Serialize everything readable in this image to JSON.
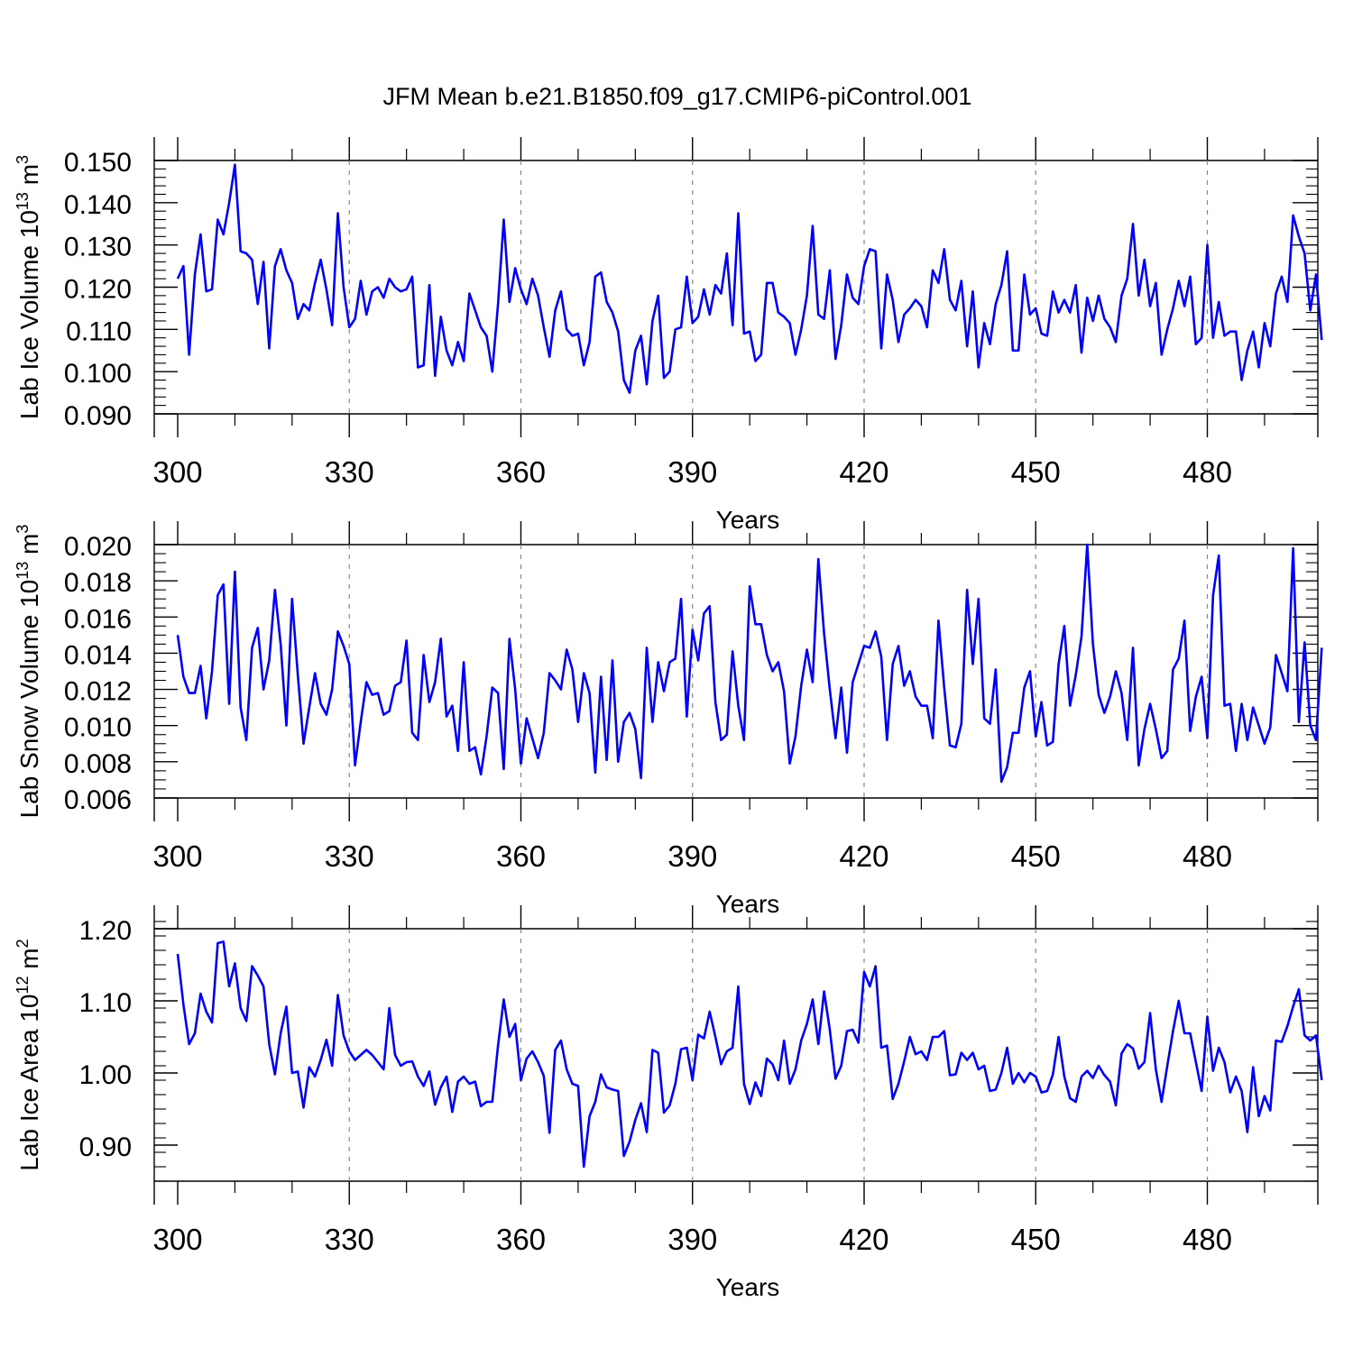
{
  "title": "JFM Mean b.e21.B1850.f09_g17.CMIP6-piControl.001",
  "colors": {
    "series": "#0000ff",
    "axis": "#000000",
    "grid": "#888888"
  },
  "chart_data": [
    {
      "type": "line",
      "name": "lab-ice-volume",
      "title": "",
      "ylabel": {
        "main": "Lab Ice Volume 10",
        "exp": "13",
        "unit": " m",
        "unit_exp": "3"
      },
      "xlabel": "Years",
      "xlim": [
        300,
        499
      ],
      "xticks": [
        300,
        330,
        360,
        390,
        420,
        450,
        480
      ],
      "xtick_labels": [
        "300",
        "330",
        "360",
        "390",
        "420",
        "450",
        "480"
      ],
      "ylim": [
        0.09,
        0.15
      ],
      "yticks": [
        0.09,
        0.1,
        0.11,
        0.12,
        0.13,
        0.14,
        0.15
      ],
      "ytick_labels": [
        "0.090",
        "0.100",
        "0.110",
        "0.120",
        "0.130",
        "0.140",
        "0.150"
      ],
      "y_minor_step": 0.002,
      "x_start": 300,
      "values": [
        0.122,
        0.125,
        0.104,
        0.123,
        0.1325,
        0.119,
        0.1195,
        0.136,
        0.1325,
        0.14,
        0.149,
        0.1285,
        0.128,
        0.1265,
        0.116,
        0.126,
        0.1055,
        0.125,
        0.129,
        0.124,
        0.121,
        0.1125,
        0.116,
        0.1145,
        0.121,
        0.1265,
        0.1195,
        0.111,
        0.1375,
        0.12,
        0.1105,
        0.1125,
        0.1215,
        0.1135,
        0.119,
        0.12,
        0.1175,
        0.122,
        0.12,
        0.119,
        0.1195,
        0.1225,
        0.101,
        0.1015,
        0.1205,
        0.099,
        0.113,
        0.105,
        0.1015,
        0.107,
        0.1025,
        0.1185,
        0.1145,
        0.1105,
        0.1085,
        0.1,
        0.116,
        0.136,
        0.1165,
        0.1245,
        0.1195,
        0.116,
        0.122,
        0.118,
        0.1105,
        0.1035,
        0.1145,
        0.119,
        0.11,
        0.1085,
        0.109,
        0.1015,
        0.107,
        0.1225,
        0.1235,
        0.1165,
        0.114,
        0.1095,
        0.098,
        0.095,
        0.105,
        0.1085,
        0.097,
        0.112,
        0.118,
        0.0985,
        0.1,
        0.11,
        0.1105,
        0.1225,
        0.1115,
        0.113,
        0.1195,
        0.1135,
        0.1205,
        0.1185,
        0.128,
        0.111,
        0.1375,
        0.109,
        0.1095,
        0.1025,
        0.104,
        0.121,
        0.121,
        0.114,
        0.113,
        0.1115,
        0.104,
        0.11,
        0.118,
        0.1345,
        0.1135,
        0.1125,
        0.124,
        0.103,
        0.111,
        0.123,
        0.1175,
        0.116,
        0.125,
        0.129,
        0.1285,
        0.1055,
        0.123,
        0.117,
        0.107,
        0.1135,
        0.115,
        0.117,
        0.1155,
        0.1105,
        0.124,
        0.121,
        0.129,
        0.117,
        0.1145,
        0.1215,
        0.106,
        0.119,
        0.101,
        0.1115,
        0.1065,
        0.116,
        0.1205,
        0.1285,
        0.105,
        0.105,
        0.123,
        0.1135,
        0.115,
        0.109,
        0.1085,
        0.119,
        0.114,
        0.117,
        0.114,
        0.1205,
        0.1045,
        0.1175,
        0.112,
        0.118,
        0.1125,
        0.1105,
        0.107,
        0.118,
        0.122,
        0.135,
        0.118,
        0.1265,
        0.1155,
        0.121,
        0.104,
        0.11,
        0.115,
        0.1215,
        0.1155,
        0.1225,
        0.1065,
        0.108,
        0.13,
        0.108,
        0.1165,
        0.1085,
        0.1095,
        0.1095,
        0.098,
        0.105,
        0.1095,
        0.101,
        0.1115,
        0.106,
        0.1185,
        0.1225,
        0.1165,
        0.137,
        0.132,
        0.128,
        0.1145,
        0.123,
        0.1075
      ]
    },
    {
      "type": "line",
      "name": "lab-snow-volume",
      "title": "",
      "ylabel": {
        "main": "Lab Snow Volume 10",
        "exp": "13",
        "unit": " m",
        "unit_exp": "3"
      },
      "xlabel": "Years",
      "xlim": [
        300,
        499
      ],
      "xticks": [
        300,
        330,
        360,
        390,
        420,
        450,
        480
      ],
      "xtick_labels": [
        "300",
        "330",
        "360",
        "390",
        "420",
        "450",
        "480"
      ],
      "ylim": [
        0.006,
        0.02
      ],
      "yticks": [
        0.006,
        0.008,
        0.01,
        0.012,
        0.014,
        0.016,
        0.018,
        0.02
      ],
      "ytick_labels": [
        "0.006",
        "0.008",
        "0.010",
        "0.012",
        "0.014",
        "0.016",
        "0.018",
        "0.020"
      ],
      "y_minor_step": 0.0005,
      "x_start": 300,
      "values": [
        0.015,
        0.0127,
        0.0118,
        0.0118,
        0.0133,
        0.0104,
        0.013,
        0.0172,
        0.0178,
        0.0112,
        0.0185,
        0.011,
        0.0092,
        0.0143,
        0.0154,
        0.012,
        0.0136,
        0.0175,
        0.0145,
        0.01,
        0.017,
        0.0128,
        0.009,
        0.011,
        0.0129,
        0.0112,
        0.0106,
        0.012,
        0.0152,
        0.0144,
        0.0134,
        0.0078,
        0.0102,
        0.0124,
        0.0117,
        0.0118,
        0.0106,
        0.0108,
        0.0122,
        0.0124,
        0.0147,
        0.0096,
        0.0092,
        0.0139,
        0.0113,
        0.0124,
        0.0148,
        0.0105,
        0.0111,
        0.0086,
        0.0135,
        0.0086,
        0.0088,
        0.0073,
        0.0094,
        0.0121,
        0.0118,
        0.0076,
        0.0148,
        0.012,
        0.0079,
        0.0104,
        0.0093,
        0.0082,
        0.0096,
        0.0129,
        0.0125,
        0.012,
        0.0142,
        0.0131,
        0.0102,
        0.0129,
        0.0118,
        0.0074,
        0.0127,
        0.0081,
        0.0136,
        0.008,
        0.0102,
        0.0107,
        0.0098,
        0.0071,
        0.0143,
        0.0102,
        0.0135,
        0.0119,
        0.0135,
        0.0137,
        0.017,
        0.0105,
        0.0153,
        0.0136,
        0.0162,
        0.0166,
        0.0113,
        0.0092,
        0.0095,
        0.0141,
        0.0111,
        0.0092,
        0.0177,
        0.0156,
        0.0156,
        0.0139,
        0.013,
        0.0135,
        0.0119,
        0.0079,
        0.0094,
        0.0122,
        0.0142,
        0.0124,
        0.0192,
        0.0151,
        0.012,
        0.0093,
        0.0121,
        0.0085,
        0.0124,
        0.0134,
        0.0144,
        0.0143,
        0.0152,
        0.0138,
        0.0092,
        0.0134,
        0.0144,
        0.0122,
        0.013,
        0.0116,
        0.0111,
        0.0111,
        0.0093,
        0.0158,
        0.0121,
        0.0089,
        0.0088,
        0.0101,
        0.0175,
        0.0134,
        0.017,
        0.0104,
        0.0101,
        0.0131,
        0.0069,
        0.0077,
        0.0096,
        0.0096,
        0.0121,
        0.013,
        0.0094,
        0.0113,
        0.0089,
        0.0091,
        0.0134,
        0.0155,
        0.0111,
        0.0128,
        0.0149,
        0.02,
        0.0145,
        0.0117,
        0.0107,
        0.0116,
        0.013,
        0.0118,
        0.0092,
        0.0143,
        0.0078,
        0.0098,
        0.0112,
        0.0098,
        0.0082,
        0.0086,
        0.0131,
        0.0137,
        0.0158,
        0.0097,
        0.0116,
        0.0127,
        0.0093,
        0.0172,
        0.0194,
        0.0111,
        0.0112,
        0.0086,
        0.0112,
        0.0092,
        0.011,
        0.01,
        0.009,
        0.0099,
        0.0139,
        0.0129,
        0.0119,
        0.0198,
        0.0102,
        0.0146,
        0.01,
        0.0092,
        0.0143
      ]
    },
    {
      "type": "line",
      "name": "lab-ice-area",
      "title": "",
      "ylabel": {
        "main": "Lab Ice Area 10",
        "exp": "12",
        "unit": " m",
        "unit_exp": "2"
      },
      "xlabel": "Years",
      "xlim": [
        300,
        499
      ],
      "xticks": [
        300,
        330,
        360,
        390,
        420,
        450,
        480
      ],
      "xtick_labels": [
        "300",
        "330",
        "360",
        "390",
        "420",
        "450",
        "480"
      ],
      "ylim": [
        0.85,
        1.2
      ],
      "yticks": [
        0.9,
        1.0,
        1.1,
        1.2
      ],
      "ytick_labels": [
        "0.90",
        "1.00",
        "1.10",
        "1.20"
      ],
      "y_minor_step": 0.02,
      "x_start": 300,
      "values": [
        1.165,
        1.095,
        1.04,
        1.055,
        1.11,
        1.085,
        1.07,
        1.18,
        1.182,
        1.12,
        1.152,
        1.09,
        1.072,
        1.148,
        1.135,
        1.12,
        1.04,
        0.998,
        1.055,
        1.092,
        1.0,
        1.002,
        0.952,
        1.008,
        0.995,
        1.018,
        1.046,
        1.01,
        1.108,
        1.052,
        1.03,
        1.018,
        1.025,
        1.032,
        1.025,
        1.015,
        1.005,
        1.09,
        1.025,
        1.01,
        1.015,
        1.016,
        0.995,
        0.982,
        1.002,
        0.956,
        0.98,
        0.995,
        0.946,
        0.988,
        0.995,
        0.985,
        0.988,
        0.954,
        0.96,
        0.96,
        1.038,
        1.102,
        1.05,
        1.068,
        0.99,
        1.02,
        1.03,
        1.015,
        0.996,
        0.917,
        1.032,
        1.045,
        1.005,
        0.985,
        0.982,
        0.87,
        0.94,
        0.96,
        0.998,
        0.98,
        0.977,
        0.975,
        0.885,
        0.905,
        0.935,
        0.958,
        0.918,
        1.032,
        1.028,
        0.945,
        0.955,
        0.985,
        1.033,
        1.035,
        0.99,
        1.053,
        1.048,
        1.085,
        1.05,
        1.012,
        1.03,
        1.035,
        1.12,
        0.985,
        0.957,
        0.987,
        0.968,
        1.02,
        1.012,
        0.99,
        1.045,
        0.985,
        1.005,
        1.045,
        1.068,
        1.102,
        1.04,
        1.113,
        1.06,
        0.992,
        1.01,
        1.058,
        1.06,
        1.042,
        1.14,
        1.12,
        1.148,
        1.035,
        1.038,
        0.964,
        0.985,
        1.016,
        1.05,
        1.026,
        1.03,
        1.018,
        1.05,
        1.05,
        1.058,
        0.997,
        0.998,
        1.028,
        1.018,
        1.028,
        1.005,
        1.01,
        0.975,
        0.977,
        1.0,
        1.035,
        0.985,
        1.0,
        0.987,
        1.0,
        0.995,
        0.973,
        0.975,
        0.998,
        1.05,
        0.995,
        0.965,
        0.96,
        0.995,
        1.003,
        0.993,
        1.01,
        0.997,
        0.988,
        0.955,
        1.027,
        1.04,
        1.034,
        1.006,
        1.015,
        1.083,
        1.005,
        0.96,
        1.01,
        1.058,
        1.1,
        1.055,
        1.055,
        1.015,
        0.975,
        1.078,
        1.003,
        1.035,
        1.015,
        0.973,
        0.995,
        0.975,
        0.918,
        1.008,
        0.94,
        0.968,
        0.948,
        1.045,
        1.043,
        1.065,
        1.092,
        1.116,
        1.052,
        1.045,
        1.052,
        0.99
      ]
    }
  ]
}
